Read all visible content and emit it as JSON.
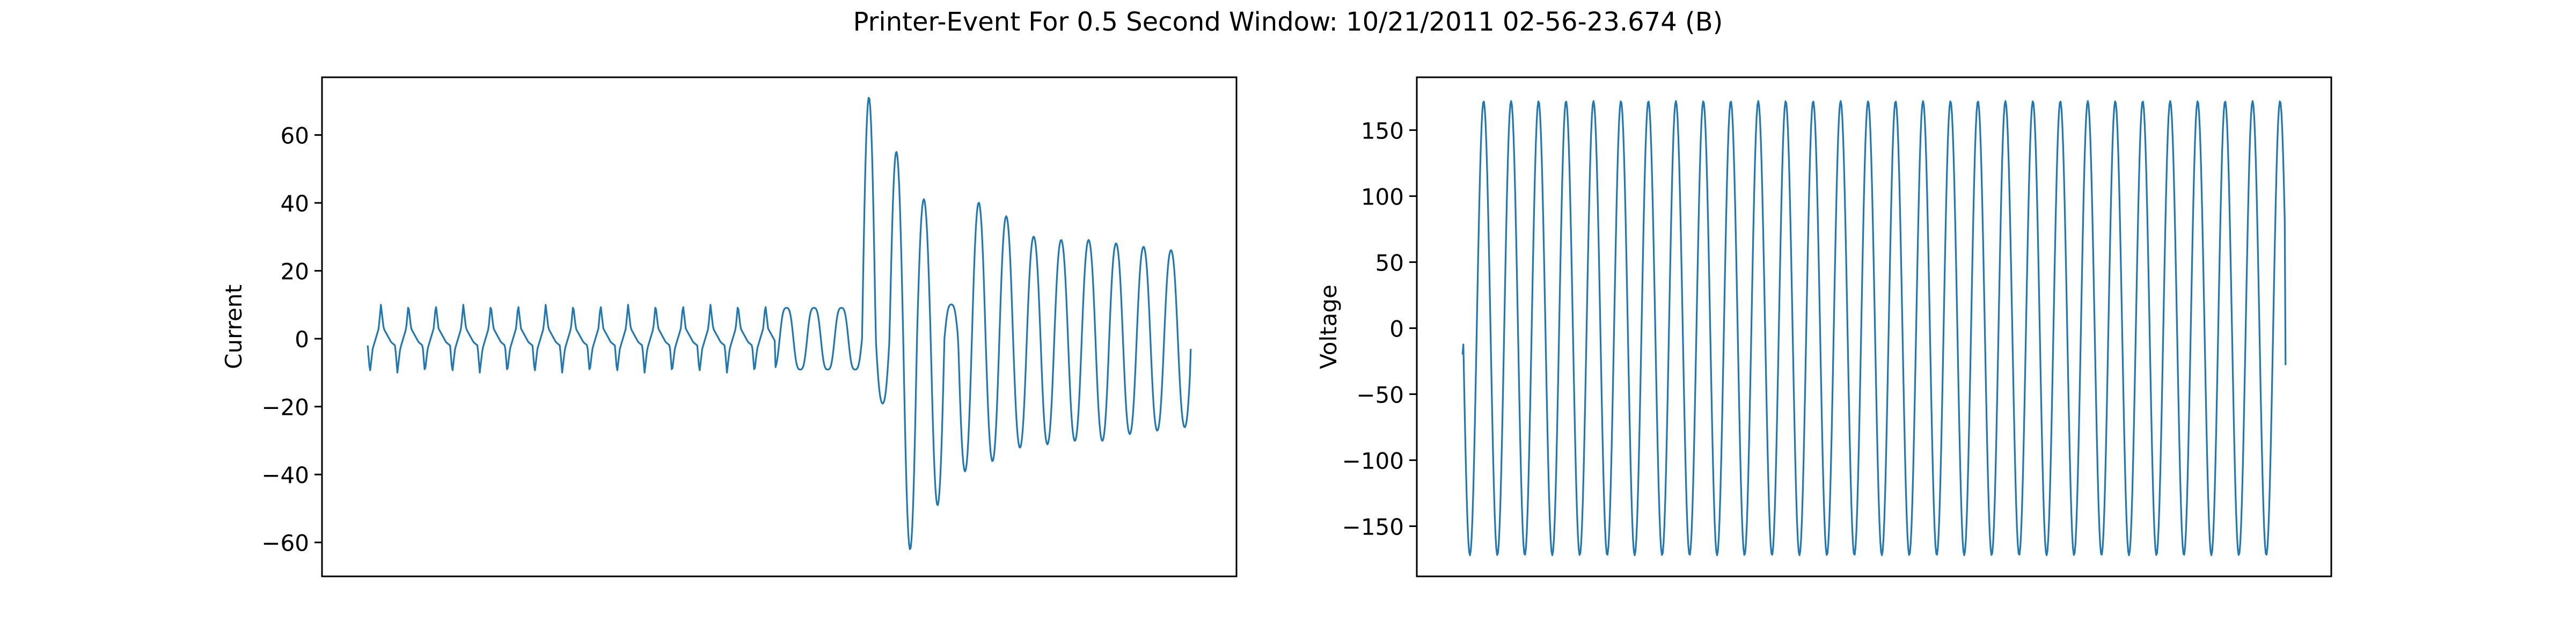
{
  "figure": {
    "title": "Printer-Event For 0.5 Second Window: 10/21/2011 02-56-23.674 (B)"
  },
  "colors": {
    "line": "#1f77b4",
    "axes": "#000000",
    "background": "#ffffff"
  },
  "chart_data": [
    {
      "type": "line",
      "title": "",
      "xlabel": "",
      "ylabel": "Current",
      "ylim": [
        -70,
        77
      ],
      "yticks": [
        -60,
        -40,
        -20,
        0,
        20,
        40,
        60
      ],
      "ytick_labels": [
        "−60",
        "−40",
        "−20",
        "0",
        "20",
        "40",
        "60"
      ],
      "x_ticks_shown": false,
      "grid": false,
      "legend": "none",
      "sample_count": 1000,
      "cycles": 30,
      "event_sample": 495,
      "series": [
        {
          "steady_state": {
            "cycles": 18,
            "peak": 10,
            "trough": -10
          },
          "event_cycle_peaks": [
            {
              "cycle": 18,
              "peak": 72,
              "trough": -20
            },
            {
              "cycle": 19,
              "peak": 56,
              "trough": -63
            },
            {
              "cycle": 20,
              "peak": 42,
              "trough": -50
            },
            {
              "cycle": 21,
              "peak": 11,
              "trough": -40
            },
            {
              "cycle": 22,
              "peak": 41,
              "trough": -37
            },
            {
              "cycle": 23,
              "peak": 37,
              "trough": -33
            },
            {
              "cycle": 24,
              "peak": 31,
              "trough": -32
            },
            {
              "cycle": 25,
              "peak": 30,
              "trough": -31
            },
            {
              "cycle": 26,
              "peak": 30,
              "trough": -31
            },
            {
              "cycle": 27,
              "peak": 29,
              "trough": -29
            },
            {
              "cycle": 28,
              "peak": 28,
              "trough": -28
            },
            {
              "cycle": 29,
              "peak": 27,
              "trough": -27
            }
          ],
          "end_value": -3
        }
      ]
    },
    {
      "type": "line",
      "title": "",
      "xlabel": "",
      "ylabel": "Voltage",
      "ylim": [
        -188,
        190
      ],
      "yticks": [
        -150,
        -100,
        -50,
        0,
        50,
        100,
        150
      ],
      "ytick_labels": [
        "−150",
        "−100",
        "−50",
        "0",
        "50",
        "100",
        "150"
      ],
      "x_ticks_shown": false,
      "grid": false,
      "legend": "none",
      "sample_count": 1000,
      "cycles": 30,
      "series": [
        {
          "amplitude": 172,
          "start_value": -20,
          "end_value": -28
        }
      ]
    }
  ]
}
